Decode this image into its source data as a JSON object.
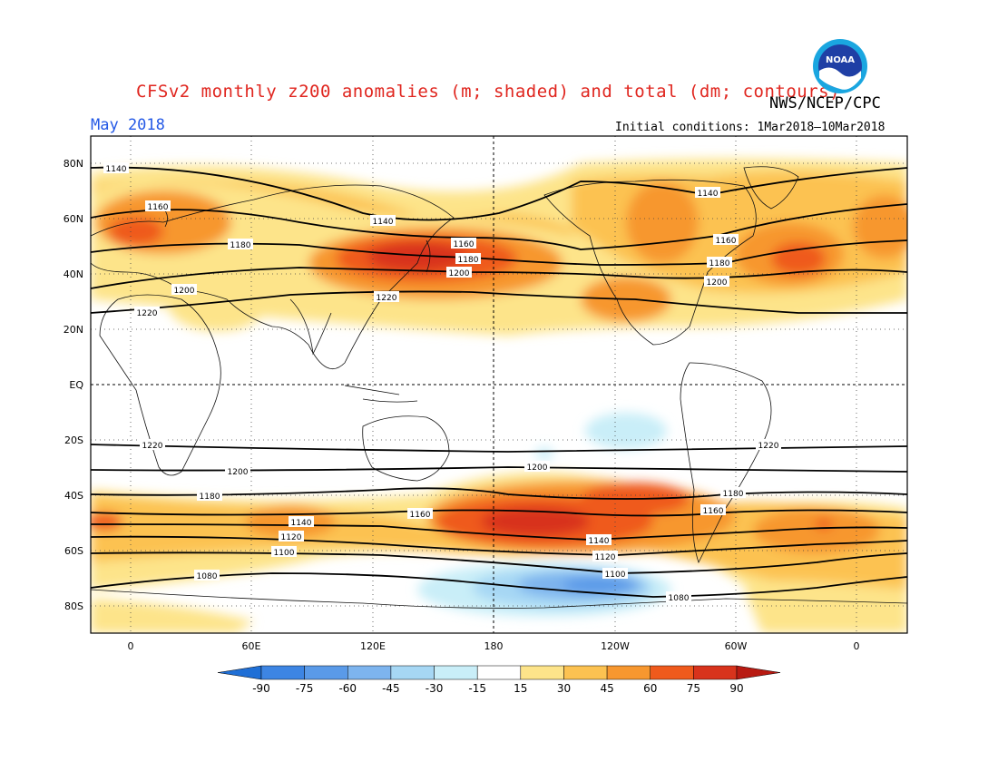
{
  "title": "CFSv2 monthly z200 anomalies (m; shaded) and total (dm; contours)",
  "period": "May 2018",
  "credit": "NWS/NCEP/CPC",
  "initial_conditions": "Initial conditions: 1Mar2018–10Mar2018",
  "logo": {
    "icon": "noaa-logo",
    "text": "NOAA"
  },
  "axes": {
    "y_labels": [
      "80N",
      "60N",
      "40N",
      "20N",
      "EQ",
      "20S",
      "40S",
      "60S",
      "80S"
    ],
    "x_labels": [
      "0",
      "60E",
      "120E",
      "180",
      "120W",
      "60W",
      "0"
    ]
  },
  "colorbar": {
    "labels": [
      "-90",
      "-75",
      "-60",
      "-45",
      "-30",
      "-15",
      "15",
      "30",
      "45",
      "60",
      "75",
      "90"
    ],
    "colors": [
      "#1f6fd6",
      "#3d85e3",
      "#5a9ae8",
      "#7db4ee",
      "#a6d7f4",
      "#c9eef8",
      "#ffffff",
      "#fde48a",
      "#fcc251",
      "#f7972f",
      "#ef5a1c",
      "#d8331c",
      "#b81a12"
    ]
  },
  "contour_labels": [
    "1140",
    "1160",
    "1180",
    "1200",
    "1220",
    "1140",
    "1160",
    "1180",
    "1200",
    "1220",
    "1160",
    "1180",
    "1200",
    "1140",
    "1220",
    "1200",
    "1180",
    "1160",
    "1140",
    "1120",
    "1100",
    "1080",
    "1220",
    "1200",
    "1180",
    "1160",
    "1140",
    "1120",
    "1100",
    "1080"
  ]
}
